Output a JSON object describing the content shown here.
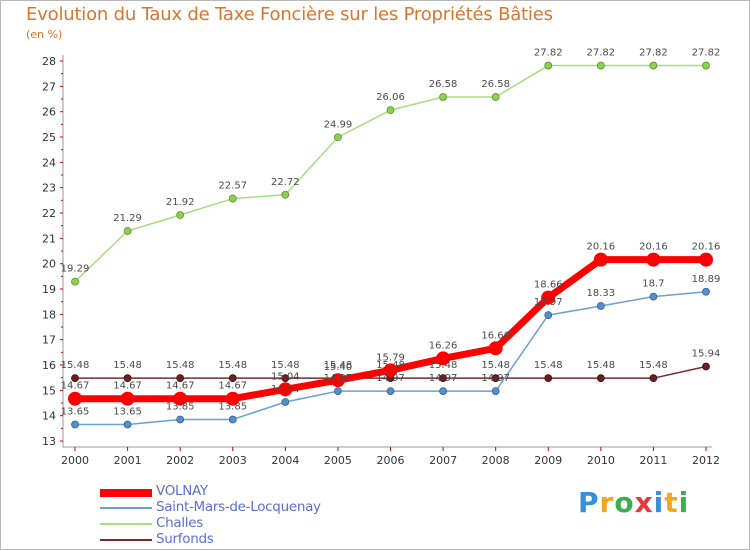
{
  "title": "Evolution du Taux de Taxe Foncière sur les Propriétés Bâties",
  "unit": "(en %)",
  "logo": {
    "letters": [
      "P",
      "r",
      "o",
      "x",
      "i",
      "t",
      "i"
    ],
    "colors": [
      "#3a8fd9",
      "#f2a81d",
      "#3ab04a",
      "#e03a3a",
      "#3a8fd9",
      "#f2a81d",
      "#3ab04a"
    ]
  },
  "chart_data": {
    "type": "line",
    "title": "Evolution du Taux de Taxe Foncière sur les Propriétés Bâties",
    "ylabel": "(en %)",
    "xlabel": "",
    "x": [
      "2000",
      "2001",
      "2002",
      "2003",
      "2004",
      "2005",
      "2006",
      "2007",
      "2008",
      "2009",
      "2010",
      "2011",
      "2012"
    ],
    "ylim": [
      13,
      28
    ],
    "yticks": [
      "13",
      "14",
      "15",
      "16",
      "17",
      "18",
      "19",
      "20",
      "21",
      "22",
      "23",
      "24",
      "25",
      "26",
      "27",
      "28"
    ],
    "grid": false,
    "legend_position": "bottom-left",
    "series": [
      {
        "name": "VOLNAY",
        "color": "#ff0000",
        "values": [
          14.67,
          14.67,
          14.67,
          14.67,
          15.04,
          15.4,
          15.79,
          16.26,
          16.66,
          18.66,
          20.16,
          20.16,
          20.16
        ],
        "labels": [
          "14.67",
          "14.67",
          "14.67",
          "14.67",
          "15.04",
          "15.40",
          "15.79",
          "16.26",
          "16.66",
          "18.66",
          "20.16",
          "20.16",
          "20.16"
        ]
      },
      {
        "name": "Saint-Mars-de-Locquenay",
        "color": "#6e9fcf",
        "values": [
          13.65,
          13.65,
          13.85,
          13.85,
          14.54,
          14.97,
          14.97,
          14.97,
          14.97,
          17.97,
          18.33,
          18.7,
          18.89
        ],
        "labels": [
          "13.65",
          "13.65",
          "13.85",
          "13.85",
          "14.54",
          "14.97",
          "14.97",
          "14.97",
          "14.97",
          "17.97",
          "18.33",
          "18.7",
          "18.89"
        ]
      },
      {
        "name": "Challes",
        "color": "#a8dc82",
        "values": [
          19.29,
          21.29,
          21.92,
          22.57,
          22.72,
          24.99,
          26.06,
          26.58,
          26.58,
          27.82,
          27.82,
          27.82,
          27.82
        ],
        "labels": [
          "19.29",
          "21.29",
          "21.92",
          "22.57",
          "22.72",
          "24.99",
          "26.06",
          "26.58",
          "26.58",
          "27.82",
          "27.82",
          "27.82",
          "27.82"
        ]
      },
      {
        "name": "Surfonds",
        "color": "#7a2a2a",
        "values": [
          15.48,
          15.48,
          15.48,
          15.48,
          15.48,
          15.48,
          15.48,
          15.48,
          15.48,
          15.48,
          15.48,
          15.48,
          15.94
        ],
        "labels": [
          "15.48",
          "15.48",
          "15.48",
          "15.48",
          "15.48",
          "15.48",
          "15.48",
          "15.48",
          "15.48",
          "15.48",
          "15.48",
          "15.48",
          "15.94"
        ]
      }
    ]
  }
}
